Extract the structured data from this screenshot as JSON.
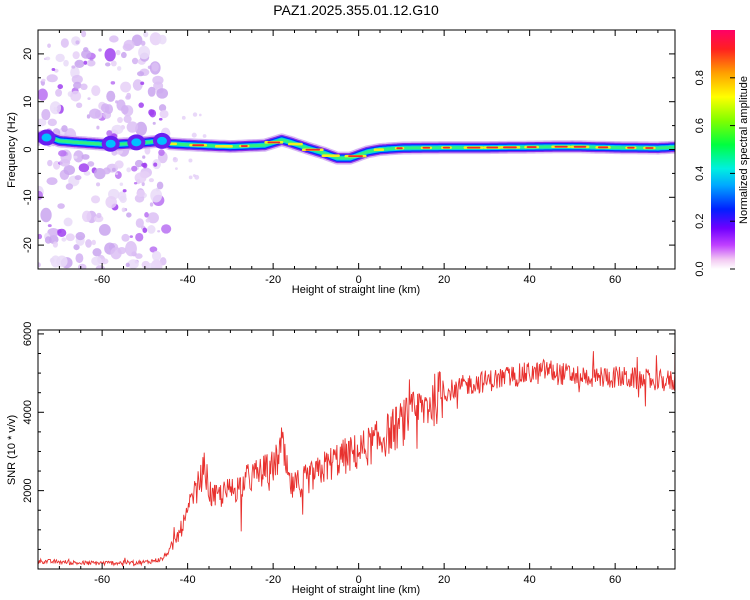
{
  "title": "PAZ1.2025.355.01.12.G10",
  "chart_data": [
    {
      "type": "heatmap",
      "xlabel": "Height of straight line (km)",
      "ylabel": "Frequency (Hz)",
      "xlim": [
        -75,
        74
      ],
      "ylim": [
        -25,
        25
      ],
      "xticks": [
        -60,
        -40,
        -20,
        0,
        20,
        40,
        60
      ],
      "yticks": [
        -20,
        -10,
        0,
        10,
        20
      ],
      "grid": false,
      "colorbar": {
        "label": "Normalized spectral amplitude",
        "range": [
          0,
          1
        ],
        "ticks": [
          0.0,
          0.2,
          0.4,
          0.6,
          0.8
        ],
        "tick_labels": [
          "0.0",
          "0.2",
          "0.4",
          "0.6",
          "0.8"
        ]
      },
      "ridge": {
        "x": [
          -75,
          -73,
          -70,
          -66,
          -58,
          -52,
          -46,
          -44,
          -40,
          -30,
          -22,
          -18,
          -16,
          -12,
          -8,
          -5,
          -2,
          2,
          5,
          10,
          20,
          30,
          40,
          50,
          60,
          70,
          74
        ],
        "y": [
          2.5,
          2.8,
          1.8,
          1.5,
          1.0,
          1.3,
          1.8,
          1.2,
          1.0,
          0.6,
          0.9,
          2.0,
          1.5,
          0.3,
          -0.8,
          -1.8,
          -1.8,
          -0.5,
          0,
          0.3,
          0.4,
          0.4,
          0.5,
          0.6,
          0.4,
          0.3,
          0.5
        ]
      }
    },
    {
      "type": "line",
      "xlabel": "Height of straight line (km)",
      "ylabel": "SNR (10 * v/v)",
      "xlim": [
        -75,
        74
      ],
      "ylim": [
        0,
        6100
      ],
      "xticks": [
        -60,
        -40,
        -20,
        0,
        20,
        40,
        60
      ],
      "yticks": [
        2000,
        4000,
        6000
      ],
      "grid": false,
      "series": [
        {
          "color": "#e8312e",
          "x": [
            -75,
            -70,
            -65,
            -60,
            -55,
            -50,
            -46,
            -44,
            -42,
            -40,
            -39,
            -38,
            -37,
            -36,
            -35,
            -34,
            -32,
            -30,
            -28,
            -26,
            -24,
            -22,
            -20,
            -19,
            -18,
            -17,
            -16,
            -15,
            -14,
            -12,
            -10,
            -8,
            -5,
            0,
            5,
            10,
            15,
            20,
            25,
            30,
            35,
            40,
            42,
            44,
            46,
            50,
            55,
            60,
            65,
            70,
            74
          ],
          "y": [
            200,
            180,
            150,
            150,
            160,
            170,
            250,
            500,
            900,
            1400,
            1800,
            2000,
            2300,
            2600,
            2000,
            1800,
            1900,
            2000,
            2100,
            2300,
            2400,
            2500,
            2600,
            2800,
            3200,
            2600,
            2100,
            2100,
            2200,
            2300,
            2400,
            2600,
            2800,
            3000,
            3300,
            3700,
            4100,
            4500,
            4700,
            4800,
            4900,
            5000,
            5000,
            5100,
            5000,
            4950,
            4900,
            4900,
            4850,
            4800,
            4800
          ]
        }
      ]
    }
  ]
}
